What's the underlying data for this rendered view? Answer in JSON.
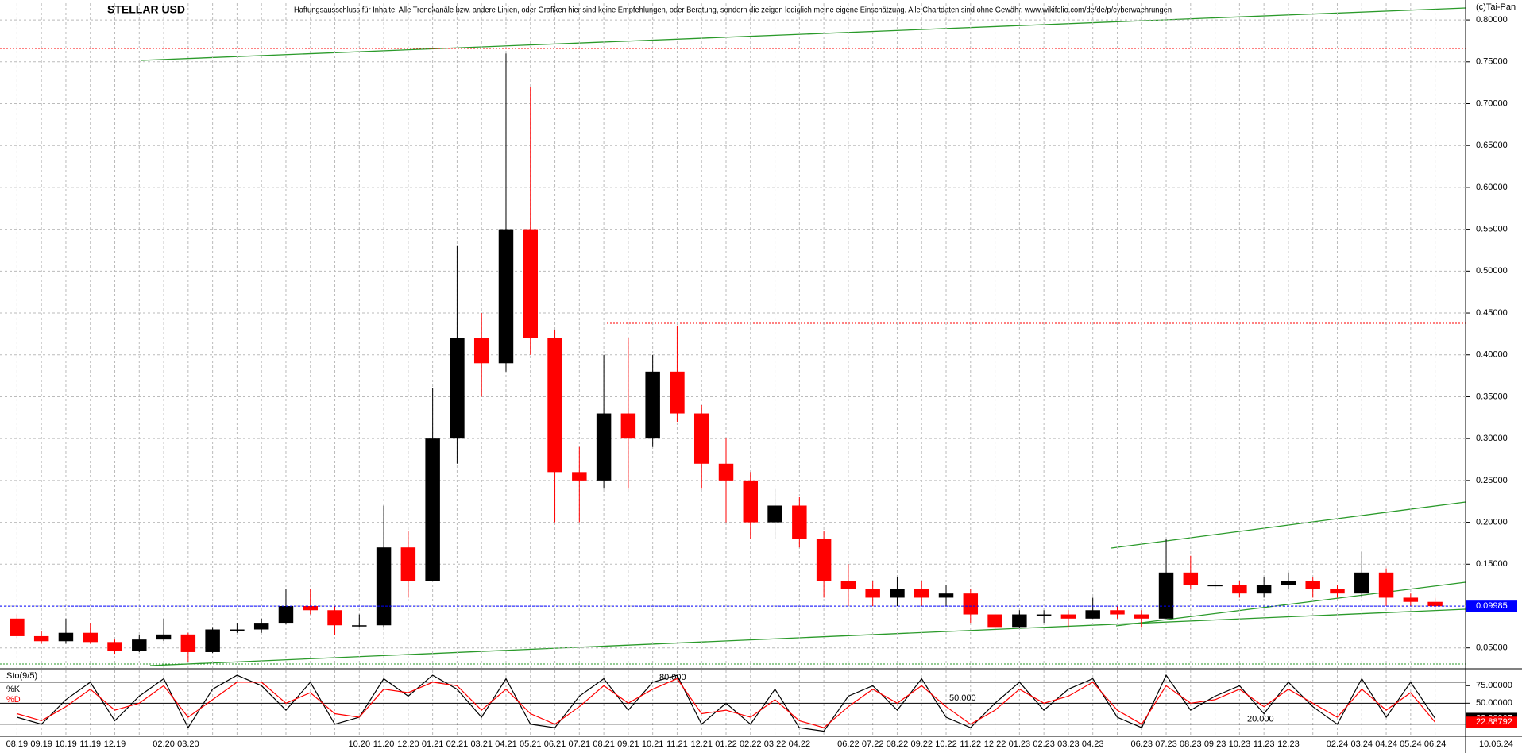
{
  "chart_data": [
    {
      "type": "candlestick",
      "title": "STELLAR USD",
      "subtitle": "Haftungsausschluss für Inhalte: Alle Trendkanäle bzw. andere Linien, oder Grafiken hier sind keine Empfehlungen, oder Beratung, sondern die zeigen lediglich meine eigene Einschätzung. Alle Chartdaten sind ohne Gewähr. www.wikifolio.com/de/de/p/cyberwaehrungen",
      "credit": "(c)Tai-Pan",
      "x_end_label": "10.06.24",
      "categories": [
        "08.19",
        "09.19",
        "10.19",
        "11.19",
        "12.19",
        null,
        "02.20",
        "03.20",
        null,
        null,
        null,
        null,
        null,
        null,
        "10.20",
        "11.20",
        "12.20",
        "01.21",
        "02.21",
        "03.21",
        "04.21",
        "05.21",
        "06.21",
        "07.21",
        "08.21",
        "09.21",
        "10.21",
        "11.21",
        "12.21",
        "01.22",
        "02.22",
        "03.22",
        "04.22",
        null,
        "06.22",
        "07.22",
        "08.22",
        "09.22",
        "10.22",
        "11.22",
        "12.22",
        "01.23",
        "02.23",
        "03.23",
        "04.23",
        null,
        "06.23",
        "07.23",
        "08.23",
        "09.23",
        "10.23",
        "11.23",
        "12.23",
        null,
        "02.24",
        "03.24",
        "04.24",
        "05.24",
        "06.24"
      ],
      "open": [
        0.085,
        0.064,
        0.058,
        0.068,
        0.057,
        0.046,
        0.06,
        0.066,
        0.045,
        0.072,
        0.072,
        0.08,
        0.1,
        0.095,
        0.077,
        0.077,
        0.17,
        0.13,
        0.3,
        0.42,
        0.39,
        0.55,
        0.42,
        0.26,
        0.25,
        0.33,
        0.3,
        0.38,
        0.33,
        0.27,
        0.25,
        0.2,
        0.22,
        0.18,
        0.13,
        0.12,
        0.11,
        0.12,
        0.11,
        0.115,
        0.09,
        0.075,
        0.09,
        0.09,
        0.085,
        0.095,
        0.09,
        0.085,
        0.14,
        0.125,
        0.125,
        0.115,
        0.125,
        0.13,
        0.12,
        0.115,
        0.14,
        0.11,
        0.105
      ],
      "high": [
        0.09,
        0.07,
        0.085,
        0.08,
        0.06,
        0.065,
        0.085,
        0.068,
        0.075,
        0.08,
        0.085,
        0.12,
        0.12,
        0.1,
        0.09,
        0.22,
        0.19,
        0.36,
        0.53,
        0.45,
        0.76,
        0.72,
        0.43,
        0.29,
        0.4,
        0.42,
        0.4,
        0.435,
        0.34,
        0.3,
        0.26,
        0.24,
        0.23,
        0.19,
        0.15,
        0.13,
        0.135,
        0.13,
        0.125,
        0.12,
        0.09,
        0.095,
        0.095,
        0.095,
        0.11,
        0.1,
        0.095,
        0.18,
        0.16,
        0.13,
        0.13,
        0.135,
        0.14,
        0.135,
        0.125,
        0.165,
        0.145,
        0.115,
        0.11
      ],
      "low": [
        0.062,
        0.055,
        0.055,
        0.055,
        0.043,
        0.045,
        0.058,
        0.033,
        0.044,
        0.068,
        0.068,
        0.078,
        0.09,
        0.065,
        0.075,
        0.075,
        0.11,
        0.13,
        0.27,
        0.35,
        0.38,
        0.4,
        0.2,
        0.2,
        0.24,
        0.24,
        0.29,
        0.32,
        0.24,
        0.2,
        0.18,
        0.18,
        0.17,
        0.11,
        0.1,
        0.1,
        0.1,
        0.1,
        0.1,
        0.08,
        0.07,
        0.074,
        0.08,
        0.075,
        0.085,
        0.085,
        0.075,
        0.085,
        0.12,
        0.12,
        0.11,
        0.11,
        0.12,
        0.11,
        0.11,
        0.11,
        0.1,
        0.1,
        0.095
      ],
      "close": [
        0.064,
        0.058,
        0.068,
        0.057,
        0.046,
        0.06,
        0.066,
        0.045,
        0.072,
        0.072,
        0.08,
        0.1,
        0.095,
        0.077,
        0.077,
        0.17,
        0.13,
        0.3,
        0.42,
        0.39,
        0.55,
        0.42,
        0.26,
        0.25,
        0.33,
        0.3,
        0.38,
        0.33,
        0.27,
        0.25,
        0.2,
        0.22,
        0.18,
        0.13,
        0.12,
        0.11,
        0.12,
        0.11,
        0.115,
        0.09,
        0.075,
        0.09,
        0.09,
        0.085,
        0.095,
        0.09,
        0.085,
        0.14,
        0.125,
        0.125,
        0.115,
        0.125,
        0.13,
        0.12,
        0.115,
        0.14,
        0.11,
        0.105,
        0.09985
      ],
      "up_color": "#000000",
      "down_color": "#ff0000",
      "last_color": "#0000ff",
      "ylim": [
        0.026,
        0.82
      ],
      "yticks": [
        {
          "value": 0.05,
          "label": "0.05000"
        },
        {
          "value": 0.1,
          "label": "0.10000"
        },
        {
          "value": 0.15,
          "label": "0.15000"
        },
        {
          "value": 0.2,
          "label": "0.20000"
        },
        {
          "value": 0.25,
          "label": "0.25000"
        },
        {
          "value": 0.3,
          "label": "0.30000"
        },
        {
          "value": 0.35,
          "label": "0.35000"
        },
        {
          "value": 0.4,
          "label": "0.40000"
        },
        {
          "value": 0.45,
          "label": "0.45000"
        },
        {
          "value": 0.5,
          "label": "0.50000"
        },
        {
          "value": 0.55,
          "label": "0.55000"
        },
        {
          "value": 0.6,
          "label": "0.60000"
        },
        {
          "value": 0.65,
          "label": "0.65000"
        },
        {
          "value": 0.7,
          "label": "0.70000"
        },
        {
          "value": 0.75,
          "label": "0.75000"
        },
        {
          "value": 0.8,
          "label": "0.80000"
        }
      ],
      "grid": true
    },
    {
      "type": "line",
      "title": "Sto(9/5)",
      "series": [
        {
          "name": "%K",
          "color": "#000000",
          "values": [
            30,
            20,
            55,
            80,
            25,
            60,
            85,
            15,
            70,
            90,
            75,
            40,
            80,
            20,
            30,
            85,
            60,
            90,
            70,
            30,
            85,
            20,
            15,
            60,
            85,
            40,
            80,
            90,
            20,
            50,
            20,
            70,
            15,
            10,
            60,
            75,
            40,
            85,
            30,
            15,
            50,
            80,
            40,
            70,
            85,
            30,
            15,
            90,
            40,
            60,
            75,
            35,
            80,
            45,
            20,
            85,
            30,
            80,
            28.30907
          ]
        },
        {
          "name": "%D",
          "color": "#ff0000",
          "values": [
            35,
            25,
            45,
            70,
            40,
            50,
            75,
            30,
            55,
            80,
            80,
            50,
            65,
            35,
            30,
            70,
            65,
            80,
            75,
            40,
            70,
            35,
            20,
            45,
            75,
            50,
            70,
            85,
            35,
            40,
            30,
            55,
            25,
            15,
            45,
            70,
            50,
            75,
            45,
            20,
            40,
            70,
            50,
            60,
            80,
            40,
            20,
            75,
            50,
            55,
            70,
            45,
            70,
            50,
            30,
            70,
            40,
            65,
            22.88792
          ]
        }
      ],
      "ylim": [
        5,
        98
      ],
      "yticks": [
        {
          "value": 75,
          "label": "75.00000"
        },
        {
          "value": 50,
          "label": "50.00000"
        }
      ],
      "levels": [
        {
          "value": 80,
          "label": "80.000"
        },
        {
          "value": 50,
          "label": "50.000"
        },
        {
          "value": 20,
          "label": "20.000"
        }
      ]
    }
  ]
}
